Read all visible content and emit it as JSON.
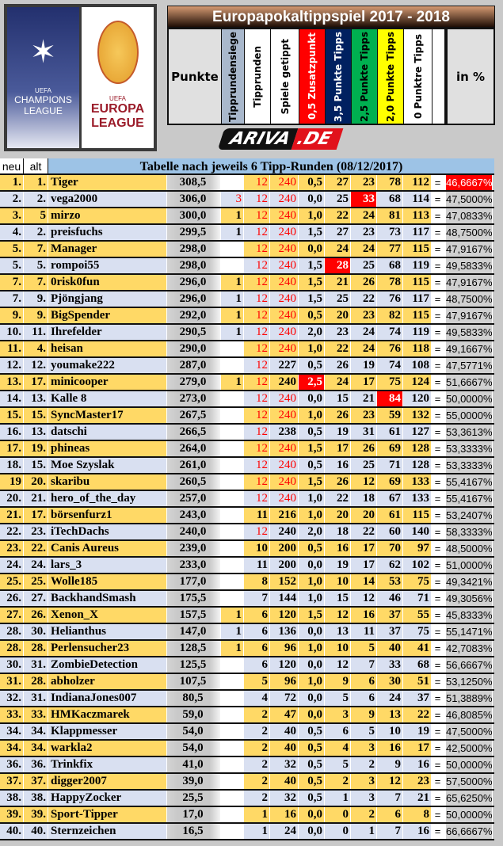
{
  "logos": {
    "left": "CHAMPIONS LEAGUE",
    "right": "EUROPA LEAGUE",
    "uefa": "UEFA"
  },
  "title": "Europapokaltippspiel 2017 - 2018",
  "headers": {
    "punkte": "Punkte",
    "siege": "Tipprundensiege",
    "runden": "Tipprunden",
    "spiele": "Spiele getippt",
    "zusatz": "0,5 Zusatzpunkt",
    "p35": "3,5 Punkte Tipps",
    "p25": "2,5 Punkte Tipps",
    "p20": "2,0 Punkte Tipps",
    "p0": "0 Punktre Tipps",
    "pct": "in %"
  },
  "header_colors": {
    "siege": "#a9b8cc",
    "zusatz": "#ff0000",
    "p35": "#002060",
    "p25": "#00b050",
    "p20": "#ffff00"
  },
  "sponsor": {
    "a": "ARIVA",
    "d": ".DE"
  },
  "table": {
    "neu": "neu",
    "alt": "alt",
    "caption": "Tabelle nach jeweils 6 Tipp-Runden (08/12/2017)",
    "eq": "="
  },
  "rows": [
    {
      "cells": [
        "1.",
        "1.",
        "Tiger",
        "308,5",
        "",
        "12",
        "240",
        "0,5",
        "27",
        "23",
        "78",
        "112",
        "46,6667%"
      ],
      "red": [
        5,
        6
      ],
      "hl": [
        12
      ]
    },
    {
      "cells": [
        "2.",
        "2.",
        "vega2000",
        "306,0",
        "3",
        "12",
        "240",
        "0,0",
        "25",
        "33",
        "68",
        "114",
        "47,5000%"
      ],
      "red": [
        4,
        5,
        6
      ],
      "hl": [
        9
      ]
    },
    {
      "cells": [
        "3.",
        "5",
        "mirzo",
        "300,0",
        "1",
        "12",
        "240",
        "1,0",
        "22",
        "24",
        "81",
        "113",
        "47,0833%"
      ],
      "red": [
        5,
        6
      ],
      "hl": []
    },
    {
      "cells": [
        "4.",
        "2.",
        "preisfuchs",
        "299,5",
        "1",
        "12",
        "240",
        "1,5",
        "27",
        "23",
        "73",
        "117",
        "48,7500%"
      ],
      "red": [
        5,
        6
      ],
      "hl": []
    },
    {
      "cells": [
        "5.",
        "7.",
        "Manager",
        "298,0",
        "",
        "12",
        "240",
        "0,0",
        "24",
        "24",
        "77",
        "115",
        "47,9167%"
      ],
      "red": [
        5,
        6
      ],
      "hl": []
    },
    {
      "cells": [
        "5.",
        "5.",
        "rompoi55",
        "298,0",
        "",
        "12",
        "240",
        "1,5",
        "28",
        "25",
        "68",
        "119",
        "49,5833%"
      ],
      "red": [
        5,
        6
      ],
      "hl": [
        8
      ]
    },
    {
      "cells": [
        "7.",
        "7.",
        "0risk0fun",
        "296,0",
        "1",
        "12",
        "240",
        "1,5",
        "21",
        "26",
        "78",
        "115",
        "47,9167%"
      ],
      "red": [
        5,
        6
      ],
      "hl": []
    },
    {
      "cells": [
        "7.",
        "9.",
        "Pjöngjang",
        "296,0",
        "1",
        "12",
        "240",
        "1,5",
        "25",
        "22",
        "76",
        "117",
        "48,7500%"
      ],
      "red": [
        5,
        6
      ],
      "hl": []
    },
    {
      "cells": [
        "9.",
        "9.",
        "BigSpender",
        "292,0",
        "1",
        "12",
        "240",
        "0,5",
        "20",
        "23",
        "82",
        "115",
        "47,9167%"
      ],
      "red": [
        5,
        6
      ],
      "hl": []
    },
    {
      "cells": [
        "10.",
        "11.",
        "Ihrefelder",
        "290,5",
        "1",
        "12",
        "240",
        "2,0",
        "23",
        "24",
        "74",
        "119",
        "49,5833%"
      ],
      "red": [
        5,
        6
      ],
      "hl": []
    },
    {
      "cells": [
        "11.",
        "4.",
        "heisan",
        "290,0",
        "",
        "12",
        "240",
        "1,0",
        "22",
        "24",
        "76",
        "118",
        "49,1667%"
      ],
      "red": [
        5,
        6
      ],
      "hl": []
    },
    {
      "cells": [
        "12.",
        "12.",
        "youmake222",
        "287,0",
        "",
        "12",
        "227",
        "0,5",
        "26",
        "19",
        "74",
        "108",
        "47,5771%"
      ],
      "red": [
        5
      ],
      "hl": []
    },
    {
      "cells": [
        "13.",
        "17.",
        "minicooper",
        "279,0",
        "1",
        "12",
        "240",
        "2,5",
        "24",
        "17",
        "75",
        "124",
        "51,6667%"
      ],
      "red": [
        5
      ],
      "hl": [
        7
      ]
    },
    {
      "cells": [
        "14.",
        "13.",
        "Kalle 8",
        "273,0",
        "",
        "12",
        "240",
        "0,0",
        "15",
        "21",
        "84",
        "120",
        "50,0000%"
      ],
      "red": [
        5,
        6
      ],
      "hl": [
        10
      ]
    },
    {
      "cells": [
        "15.",
        "15.",
        "SyncMaster17",
        "267,5",
        "",
        "12",
        "240",
        "1,0",
        "26",
        "23",
        "59",
        "132",
        "55,0000%"
      ],
      "red": [
        5,
        6
      ],
      "hl": []
    },
    {
      "cells": [
        "16.",
        "13.",
        "datschi",
        "266,5",
        "",
        "12",
        "238",
        "0,5",
        "19",
        "31",
        "61",
        "127",
        "53,3613%"
      ],
      "red": [
        5
      ],
      "hl": []
    },
    {
      "cells": [
        "17.",
        "19.",
        "phineas",
        "264,0",
        "",
        "12",
        "240",
        "1,5",
        "17",
        "26",
        "69",
        "128",
        "53,3333%"
      ],
      "red": [
        5,
        6
      ],
      "hl": []
    },
    {
      "cells": [
        "18.",
        "15.",
        "Moe Szyslak",
        "261,0",
        "",
        "12",
        "240",
        "0,5",
        "16",
        "25",
        "71",
        "128",
        "53,3333%"
      ],
      "red": [
        5,
        6
      ],
      "hl": []
    },
    {
      "cells": [
        "19",
        "20.",
        "skaribu",
        "260,5",
        "",
        "12",
        "240",
        "1,5",
        "26",
        "12",
        "69",
        "133",
        "55,4167%"
      ],
      "red": [
        5,
        6
      ],
      "hl": []
    },
    {
      "cells": [
        "20.",
        "21.",
        "hero_of_the_day",
        "257,0",
        "",
        "12",
        "240",
        "1,0",
        "22",
        "18",
        "67",
        "133",
        "55,4167%"
      ],
      "red": [
        5,
        6
      ],
      "hl": []
    },
    {
      "cells": [
        "21.",
        "17.",
        "börsenfurz1",
        "243,0",
        "",
        "11",
        "216",
        "1,0",
        "20",
        "20",
        "61",
        "115",
        "53,2407%"
      ],
      "red": [],
      "hl": []
    },
    {
      "cells": [
        "22.",
        "23.",
        "iTechDachs",
        "240,0",
        "",
        "12",
        "240",
        "2,0",
        "18",
        "22",
        "60",
        "140",
        "58,3333%"
      ],
      "red": [
        5
      ],
      "hl": []
    },
    {
      "cells": [
        "23.",
        "22.",
        "Canis Aureus",
        "239,0",
        "",
        "10",
        "200",
        "0,5",
        "16",
        "17",
        "70",
        "97",
        "48,5000%"
      ],
      "red": [],
      "hl": []
    },
    {
      "cells": [
        "24.",
        "24.",
        "lars_3",
        "233,0",
        "",
        "11",
        "200",
        "0,0",
        "19",
        "17",
        "62",
        "102",
        "51,0000%"
      ],
      "red": [],
      "hl": []
    },
    {
      "cells": [
        "25.",
        "25.",
        "Wolle185",
        "177,0",
        "",
        "8",
        "152",
        "1,0",
        "10",
        "14",
        "53",
        "75",
        "49,3421%"
      ],
      "red": [],
      "hl": []
    },
    {
      "cells": [
        "26.",
        "27.",
        "BackhandSmash",
        "175,5",
        "",
        "7",
        "144",
        "1,0",
        "15",
        "12",
        "46",
        "71",
        "49,3056%"
      ],
      "red": [],
      "hl": []
    },
    {
      "cells": [
        "27.",
        "26.",
        "Xenon_X",
        "157,5",
        "1",
        "6",
        "120",
        "1,5",
        "12",
        "16",
        "37",
        "55",
        "45,8333%"
      ],
      "red": [],
      "hl": []
    },
    {
      "cells": [
        "28.",
        "30.",
        "Helianthus",
        "147,0",
        "1",
        "6",
        "136",
        "0,0",
        "13",
        "11",
        "37",
        "75",
        "55,1471%"
      ],
      "red": [],
      "hl": []
    },
    {
      "cells": [
        "28.",
        "28.",
        "Perlensucher23",
        "128,5",
        "1",
        "6",
        "96",
        "1,0",
        "10",
        "5",
        "40",
        "41",
        "42,7083%"
      ],
      "red": [],
      "hl": []
    },
    {
      "cells": [
        "30.",
        "31.",
        "ZombieDetection",
        "125,5",
        "",
        "6",
        "120",
        "0,0",
        "12",
        "7",
        "33",
        "68",
        "56,6667%"
      ],
      "red": [],
      "hl": []
    },
    {
      "cells": [
        "31.",
        "28.",
        "abholzer",
        "107,5",
        "",
        "5",
        "96",
        "1,0",
        "9",
        "6",
        "30",
        "51",
        "53,1250%"
      ],
      "red": [],
      "hl": []
    },
    {
      "cells": [
        "32.",
        "31.",
        "IndianaJones007",
        "80,5",
        "",
        "4",
        "72",
        "0,0",
        "5",
        "6",
        "24",
        "37",
        "51,3889%"
      ],
      "red": [],
      "hl": []
    },
    {
      "cells": [
        "33.",
        "33.",
        "HMKaczmarek",
        "59,0",
        "",
        "2",
        "47",
        "0,0",
        "3",
        "9",
        "13",
        "22",
        "46,8085%"
      ],
      "red": [],
      "hl": []
    },
    {
      "cells": [
        "34.",
        "34.",
        "Klappmesser",
        "54,0",
        "",
        "2",
        "40",
        "0,5",
        "6",
        "5",
        "10",
        "19",
        "47,5000%"
      ],
      "red": [],
      "hl": []
    },
    {
      "cells": [
        "34.",
        "34.",
        "warkla2",
        "54,0",
        "",
        "2",
        "40",
        "0,5",
        "4",
        "3",
        "16",
        "17",
        "42,5000%"
      ],
      "red": [],
      "hl": []
    },
    {
      "cells": [
        "36.",
        "36.",
        "Trinkfix",
        "41,0",
        "",
        "2",
        "32",
        "0,5",
        "5",
        "2",
        "9",
        "16",
        "50,0000%"
      ],
      "red": [],
      "hl": []
    },
    {
      "cells": [
        "37.",
        "37.",
        "digger2007",
        "39,0",
        "",
        "2",
        "40",
        "0,5",
        "2",
        "3",
        "12",
        "23",
        "57,5000%"
      ],
      "red": [],
      "hl": []
    },
    {
      "cells": [
        "38.",
        "38.",
        "HappyZocker",
        "25,5",
        "",
        "2",
        "32",
        "0,5",
        "1",
        "3",
        "7",
        "21",
        "65,6250%"
      ],
      "red": [],
      "hl": []
    },
    {
      "cells": [
        "39.",
        "39.",
        "Sport-Tipper",
        "17,0",
        "",
        "1",
        "16",
        "0,0",
        "0",
        "2",
        "6",
        "8",
        "50,0000%"
      ],
      "red": [],
      "hl": []
    },
    {
      "cells": [
        "40.",
        "40.",
        "Sternzeichen",
        "16,5",
        "",
        "1",
        "24",
        "0,0",
        "0",
        "1",
        "7",
        "16",
        "66,6667%"
      ],
      "red": [],
      "hl": []
    }
  ]
}
